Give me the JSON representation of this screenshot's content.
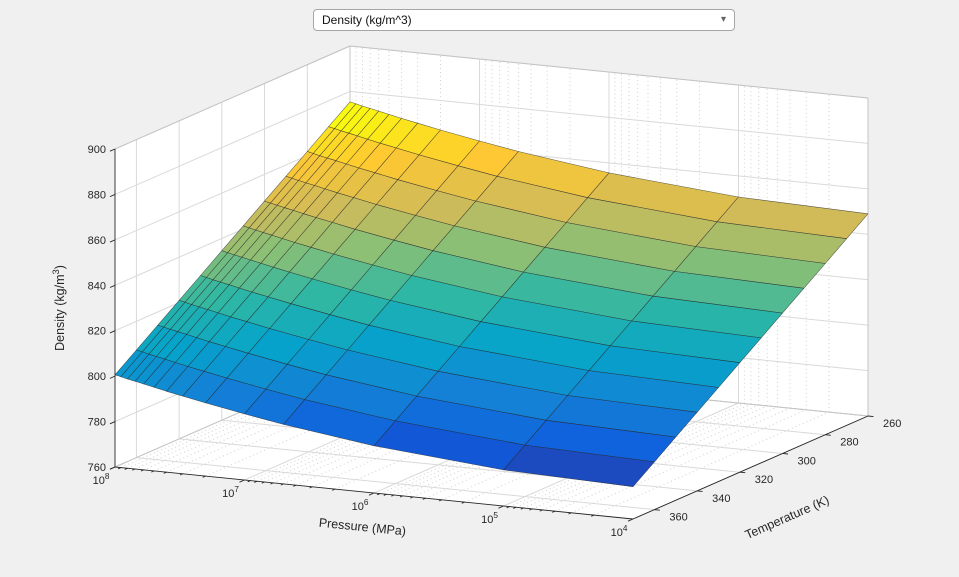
{
  "colors": {
    "background": "#f0f0f0",
    "wall": "#ffffff",
    "grid_major": "#d9d9d9",
    "grid_minor": "#cfcfcf",
    "box_edge": "#c4c4c4",
    "axis": "#262626",
    "mesh_edge": "#222222"
  },
  "dropdown": {
    "value": "Density (kg/m^3)",
    "arrow": "▾"
  },
  "chart_data": {
    "type": "surface3d",
    "title": "",
    "xlabel": "Pressure (MPa)",
    "ylabel": "Temperature (K)",
    "zlabel": "Density (kg/m^3)",
    "x_scale": "log",
    "grid": true,
    "minor_grid_x": true,
    "x_ticks": [
      "10^8",
      "10^7",
      "10^6",
      "10^5",
      "10^4"
    ],
    "x_tick_values": [
      100000000.0,
      10000000.0,
      1000000.0,
      100000.0,
      10000.0
    ],
    "y_ticks": [
      360,
      340,
      320,
      300,
      280,
      260
    ],
    "z_ticks": [
      760,
      780,
      800,
      820,
      840,
      860,
      880,
      900
    ],
    "x_range_log10": [
      4,
      8
    ],
    "y_range": [
      260,
      370
    ],
    "z_range": [
      760,
      900
    ],
    "colormap": [
      "#352a87",
      "#0f5cdd",
      "#1481d6",
      "#06a4ca",
      "#2eb7a4",
      "#87bf77",
      "#d1bb59",
      "#fec832",
      "#f9fb0e"
    ],
    "color_domain": [
      770,
      872
    ],
    "view": {
      "origin": [
        633,
        519
      ],
      "u_vec": [
        -518,
        -52
      ],
      "v_vec": [
        235,
        -103
      ],
      "w_vec": [
        0,
        -318
      ]
    },
    "pressure_points": [
      10000.0,
      100000.0,
      1000000.0,
      5000000.0,
      10000000.0,
      20000000.0,
      30000000.0,
      40000000.0,
      50000000.0,
      60000000.0,
      70000000.0,
      80000000.0,
      90000000.0,
      100000000.0
    ],
    "temperature_points": [
      260,
      270,
      280,
      290,
      300,
      310,
      320,
      330,
      340,
      350,
      360,
      370
    ],
    "density_grid": [
      [
        849,
        842.2,
        835.4,
        828.6,
        821.8,
        815,
        808.2,
        801.4,
        794.6,
        787.8,
        781,
        774.2
      ],
      [
        850.7,
        843.9,
        837.1,
        830.3,
        823.5,
        816.7,
        809.9,
        803.1,
        796.3,
        789.5,
        782.7,
        775.9
      ],
      [
        855.6,
        848.8,
        842,
        835.2,
        828.4,
        821.6,
        814.8,
        808,
        801.2,
        794.4,
        787.6,
        780.8
      ],
      [
        861,
        854.2,
        847.4,
        840.6,
        833.8,
        827,
        820.2,
        813.4,
        806.6,
        799.8,
        793,
        786.2
      ],
      [
        863.9,
        857.1,
        850.3,
        843.5,
        836.7,
        829.9,
        823.1,
        816.3,
        809.5,
        802.7,
        795.9,
        789.1
      ],
      [
        867,
        860.2,
        853.4,
        846.6,
        839.8,
        833,
        826.2,
        819.4,
        812.6,
        805.8,
        799,
        792.2
      ],
      [
        869,
        862.2,
        855.4,
        848.6,
        841.8,
        835,
        828.2,
        821.4,
        814.6,
        807.8,
        801,
        794.2
      ],
      [
        870.4,
        863.6,
        856.8,
        850,
        843.2,
        836.4,
        829.6,
        822.8,
        816,
        809.2,
        802.4,
        795.6
      ],
      [
        871.6,
        864.8,
        858,
        851.2,
        844.4,
        837.6,
        830.8,
        824,
        817.2,
        810.4,
        803.6,
        796.8
      ],
      [
        872.6,
        865.8,
        859,
        852.2,
        845.4,
        838.6,
        831.8,
        825,
        818.2,
        811.4,
        804.6,
        797.8
      ],
      [
        873.4,
        866.6,
        859.8,
        853,
        846.2,
        839.4,
        832.6,
        825.8,
        819,
        812.2,
        805.4,
        798.6
      ],
      [
        874.1,
        867.3,
        860.5,
        853.7,
        846.9,
        840.1,
        833.3,
        826.5,
        819.7,
        812.9,
        806.1,
        799.3
      ],
      [
        874.8,
        868,
        861.2,
        854.4,
        847.6,
        840.8,
        834,
        827.2,
        820.4,
        813.6,
        806.8,
        800
      ],
      [
        875.4,
        868.6,
        861.8,
        855,
        848.2,
        841.4,
        834.6,
        827.8,
        821,
        814.2,
        807.4,
        800.6
      ]
    ]
  }
}
